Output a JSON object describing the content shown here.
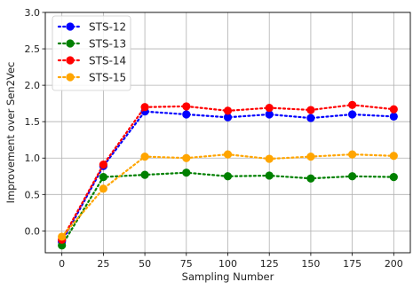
{
  "chart_data": {
    "type": "line",
    "xlabel": "Sampling Number",
    "ylabel": "Improvement over Sen2Vec",
    "xlim": [
      -10,
      210
    ],
    "ylim": [
      -0.3,
      3.0
    ],
    "x_ticks": [
      0,
      25,
      50,
      75,
      100,
      125,
      150,
      175,
      200
    ],
    "y_ticks": [
      0.0,
      0.5,
      1.0,
      1.5,
      2.0,
      2.5,
      3.0
    ],
    "y_tick_labels": [
      "0.0",
      "0.5",
      "1.0",
      "1.5",
      "2.0",
      "2.5",
      "3.0"
    ],
    "grid": true,
    "legend_position": "top-left",
    "x": [
      0,
      25,
      50,
      75,
      100,
      125,
      150,
      175,
      200
    ],
    "series": [
      {
        "name": "STS-12",
        "color": "#0000ff",
        "values": [
          -0.15,
          0.89,
          1.64,
          1.6,
          1.56,
          1.6,
          1.55,
          1.6,
          1.57
        ]
      },
      {
        "name": "STS-13",
        "color": "#008000",
        "values": [
          -0.2,
          0.74,
          0.77,
          0.8,
          0.75,
          0.76,
          0.72,
          0.75,
          0.74
        ]
      },
      {
        "name": "STS-14",
        "color": "#ff0000",
        "values": [
          -0.12,
          0.91,
          1.7,
          1.71,
          1.65,
          1.69,
          1.66,
          1.73,
          1.67
        ]
      },
      {
        "name": "STS-15",
        "color": "#ffa500",
        "values": [
          -0.08,
          0.58,
          1.02,
          1.0,
          1.05,
          0.99,
          1.02,
          1.05,
          1.03
        ]
      }
    ]
  }
}
